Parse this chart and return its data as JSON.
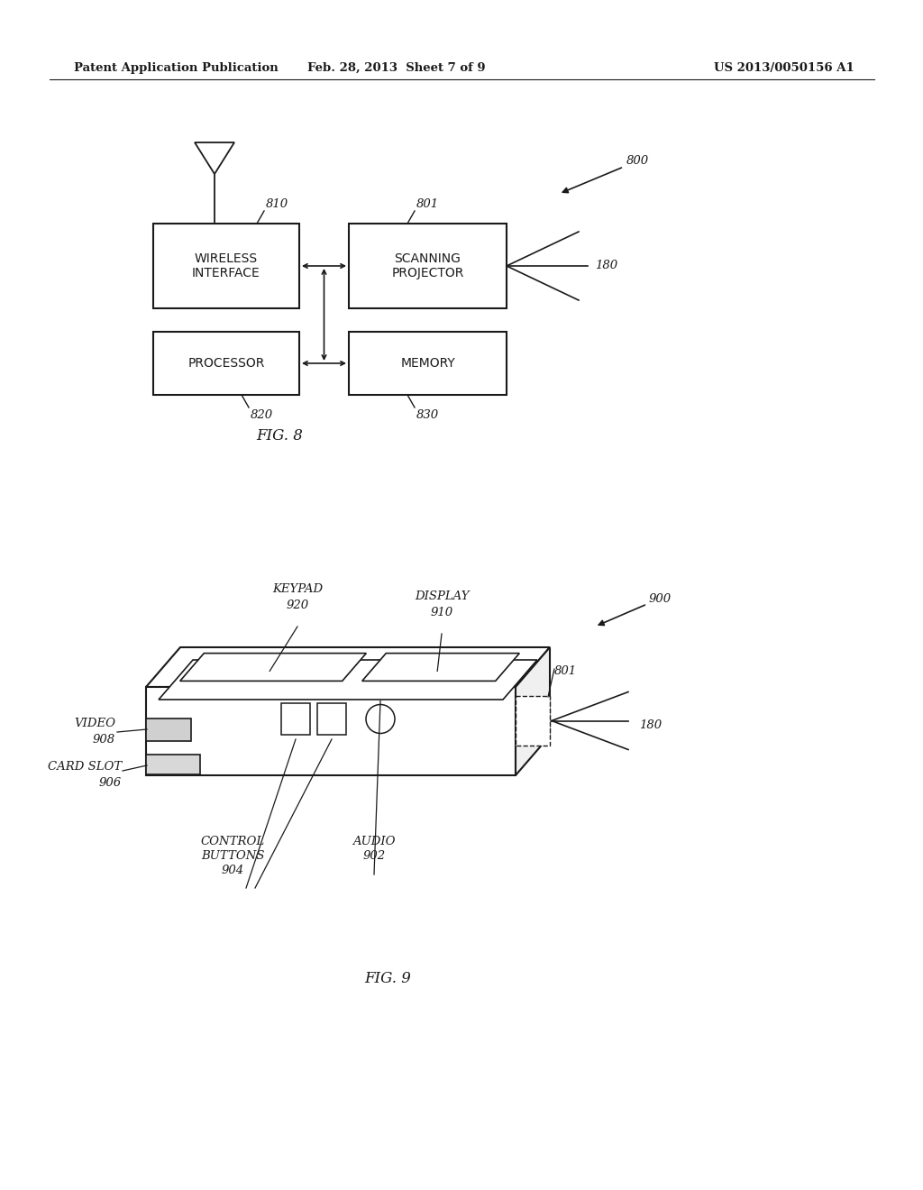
{
  "bg_color": "#ffffff",
  "header_left": "Patent Application Publication",
  "header_mid": "Feb. 28, 2013  Sheet 7 of 9",
  "header_right": "US 2013/0050156 A1",
  "fig8_label": "FIG. 8",
  "fig9_label": "FIG. 9",
  "text_color": "#1a1a1a",
  "line_color": "#1a1a1a"
}
